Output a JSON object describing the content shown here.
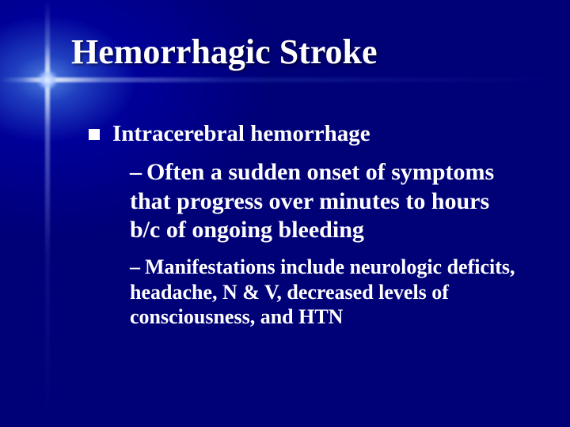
{
  "slide": {
    "title": "Hemorrhagic Stroke",
    "background": {
      "base_color": "#000088",
      "gradient_center": "#5080e0",
      "flare_color": "#ffffff"
    },
    "typography": {
      "font_family": "Times New Roman",
      "title_fontsize_pt": 44,
      "level1_fontsize_pt": 29,
      "level2_large_fontsize_pt": 30,
      "level2_small_fontsize_pt": 26,
      "font_weight": "bold",
      "text_color": "#ffffff"
    },
    "bullets": {
      "level1": [
        {
          "text": "Intracerebral hemorrhage",
          "bullet_shape": "square",
          "bullet_color": "#ffffff",
          "children": [
            {
              "dash": "–",
              "text": "Often a sudden onset of symptoms that  progress over minutes to hours b/c of ongoing bleeding",
              "size": "large"
            },
            {
              "dash": "–",
              "text": "Manifestations include neurologic deficits, headache, N & V, decreased levels of consciousness, and HTN",
              "size": "small"
            }
          ]
        }
      ]
    }
  }
}
